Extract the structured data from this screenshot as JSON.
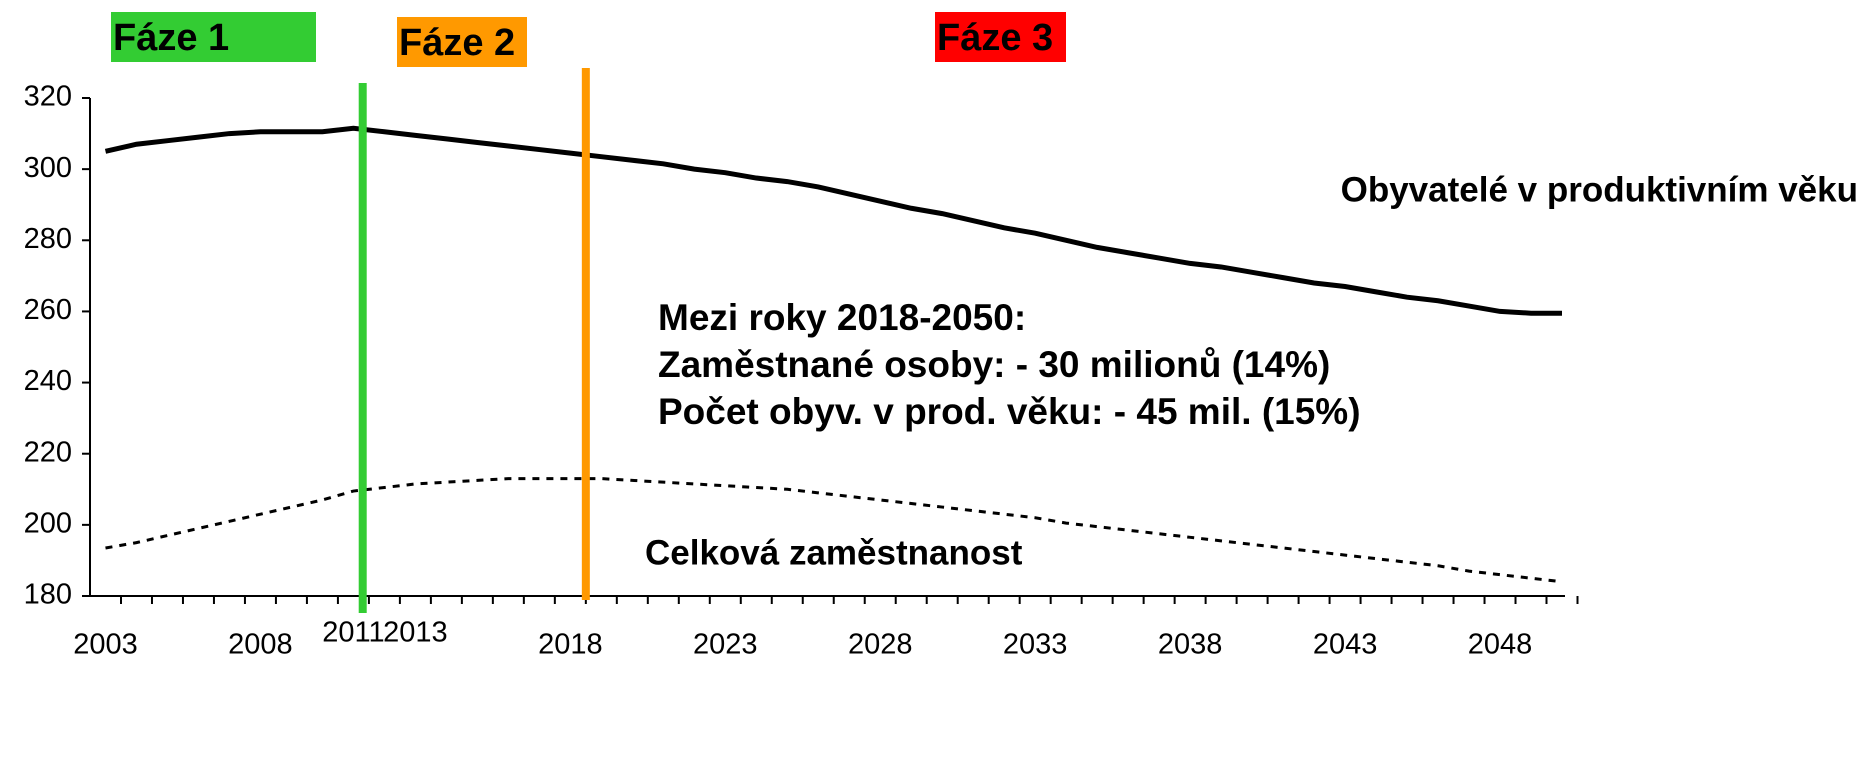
{
  "chart_data": {
    "type": "line",
    "x": [
      2003,
      2004,
      2005,
      2006,
      2007,
      2008,
      2009,
      2010,
      2011,
      2012,
      2013,
      2014,
      2015,
      2016,
      2017,
      2018,
      2019,
      2020,
      2021,
      2022,
      2023,
      2024,
      2025,
      2026,
      2027,
      2028,
      2029,
      2030,
      2031,
      2032,
      2033,
      2034,
      2035,
      2036,
      2037,
      2038,
      2039,
      2040,
      2041,
      2042,
      2043,
      2044,
      2045,
      2046,
      2047,
      2048,
      2049,
      2050
    ],
    "series": [
      {
        "name": "Obyvatelé v produktivním věku",
        "color": "#000000",
        "style": "solid",
        "values": [
          305,
          307,
          308,
          309,
          310,
          310.5,
          310.5,
          310.5,
          311.5,
          310.5,
          309.5,
          308.5,
          307.5,
          306.5,
          305.5,
          304.5,
          303.5,
          302.5,
          301.5,
          300,
          299,
          297.5,
          296.5,
          295,
          293,
          291,
          289,
          287.5,
          285.5,
          283.5,
          282,
          280,
          278,
          276.5,
          275,
          273.5,
          272.5,
          271,
          269.5,
          268,
          267,
          265.5,
          264,
          263,
          261.5,
          260,
          259.5,
          259.5
        ]
      },
      {
        "name": "Celková zaměstnanost",
        "color": "#000000",
        "style": "dotted",
        "values": [
          193.5,
          195,
          197,
          199,
          201,
          203,
          205,
          207,
          209.5,
          210.5,
          211.5,
          212,
          212.5,
          213,
          213,
          213,
          213,
          212.5,
          212,
          211.5,
          211,
          210.5,
          210,
          209,
          208,
          207,
          206,
          205,
          204,
          203,
          202,
          200.5,
          199.5,
          198.5,
          197.5,
          196.5,
          195.5,
          194.5,
          193.5,
          192.5,
          191.5,
          190.5,
          189.5,
          188.5,
          187,
          186,
          185,
          184
        ]
      }
    ],
    "xlim": [
      2002.5,
      2050
    ],
    "xticks": [
      2003,
      2008,
      2011,
      2013,
      2018,
      2023,
      2028,
      2033,
      2038,
      2043,
      2048
    ],
    "ylim": [
      180,
      320
    ],
    "yticks": [
      180,
      200,
      220,
      240,
      260,
      280,
      300,
      320
    ],
    "phases": [
      {
        "label": "Fáze 1",
        "color": "#33cc33"
      },
      {
        "label": "Fáze 2",
        "color": "#ff9900"
      },
      {
        "label": "Fáze 3",
        "color": "#ff0000"
      }
    ],
    "phase_lines": [
      {
        "x": 2011.3,
        "color": "#33cc33"
      },
      {
        "x": 2018.5,
        "color": "#ff9900"
      }
    ],
    "annotation": [
      "Mezi roky 2018-2050:",
      "Zaměstnané osoby: - 30 milionů (14%)",
      "Počet obyv. v prod. věku: - 45 mil. (15%)"
    ]
  }
}
